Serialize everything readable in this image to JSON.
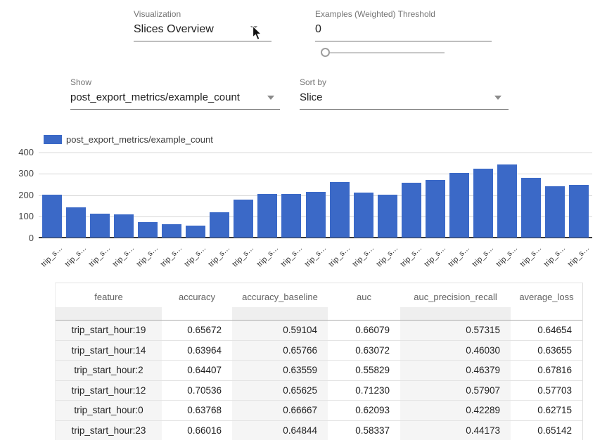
{
  "controls": {
    "visualization": {
      "label": "Visualization",
      "value": "Slices Overview"
    },
    "threshold": {
      "label": "Examples (Weighted) Threshold",
      "value": "0",
      "slider_position": "0"
    },
    "show": {
      "label": "Show",
      "value": "post_export_metrics/example_count"
    },
    "sort": {
      "label": "Sort by",
      "value": "Slice"
    }
  },
  "chart_data": {
    "type": "bar",
    "title": "",
    "legend": "post_export_metrics/example_count",
    "legend_position": "top-left",
    "bar_color": "#3b69c7",
    "grid": true,
    "ylim": [
      0,
      400
    ],
    "y_ticks": [
      0,
      100,
      200,
      300,
      400
    ],
    "xlabel": "",
    "ylabel": "",
    "categories": [
      "trip_s…",
      "trip_s…",
      "trip_s…",
      "trip_s…",
      "trip_s…",
      "trip_s…",
      "trip_s…",
      "trip_s…",
      "trip_s…",
      "trip_s…",
      "trip_s…",
      "trip_s…",
      "trip_s…",
      "trip_s…",
      "trip_s…",
      "trip_s…",
      "trip_s…",
      "trip_s…",
      "trip_s…",
      "trip_s…",
      "trip_s…",
      "trip_s…",
      "trip_s…"
    ],
    "values": [
      204,
      142,
      113,
      109,
      74,
      63,
      56,
      120,
      179,
      205,
      207,
      217,
      262,
      212,
      202,
      257,
      272,
      305,
      323,
      345,
      283,
      243,
      247
    ]
  },
  "table": {
    "columns": [
      "feature",
      "accuracy",
      "accuracy_baseline",
      "auc",
      "auc_precision_recall",
      "average_loss"
    ],
    "rows": [
      [
        "trip_start_hour:19",
        "0.65672",
        "0.59104",
        "0.66079",
        "0.57315",
        "0.64654"
      ],
      [
        "trip_start_hour:14",
        "0.63964",
        "0.65766",
        "0.63072",
        "0.46030",
        "0.63655"
      ],
      [
        "trip_start_hour:2",
        "0.64407",
        "0.63559",
        "0.55829",
        "0.46379",
        "0.67816"
      ],
      [
        "trip_start_hour:12",
        "0.70536",
        "0.65625",
        "0.71230",
        "0.57907",
        "0.57703"
      ],
      [
        "trip_start_hour:0",
        "0.63768",
        "0.66667",
        "0.62093",
        "0.42289",
        "0.62715"
      ],
      [
        "trip_start_hour:23",
        "0.66016",
        "0.64844",
        "0.58337",
        "0.44173",
        "0.65142"
      ]
    ]
  }
}
